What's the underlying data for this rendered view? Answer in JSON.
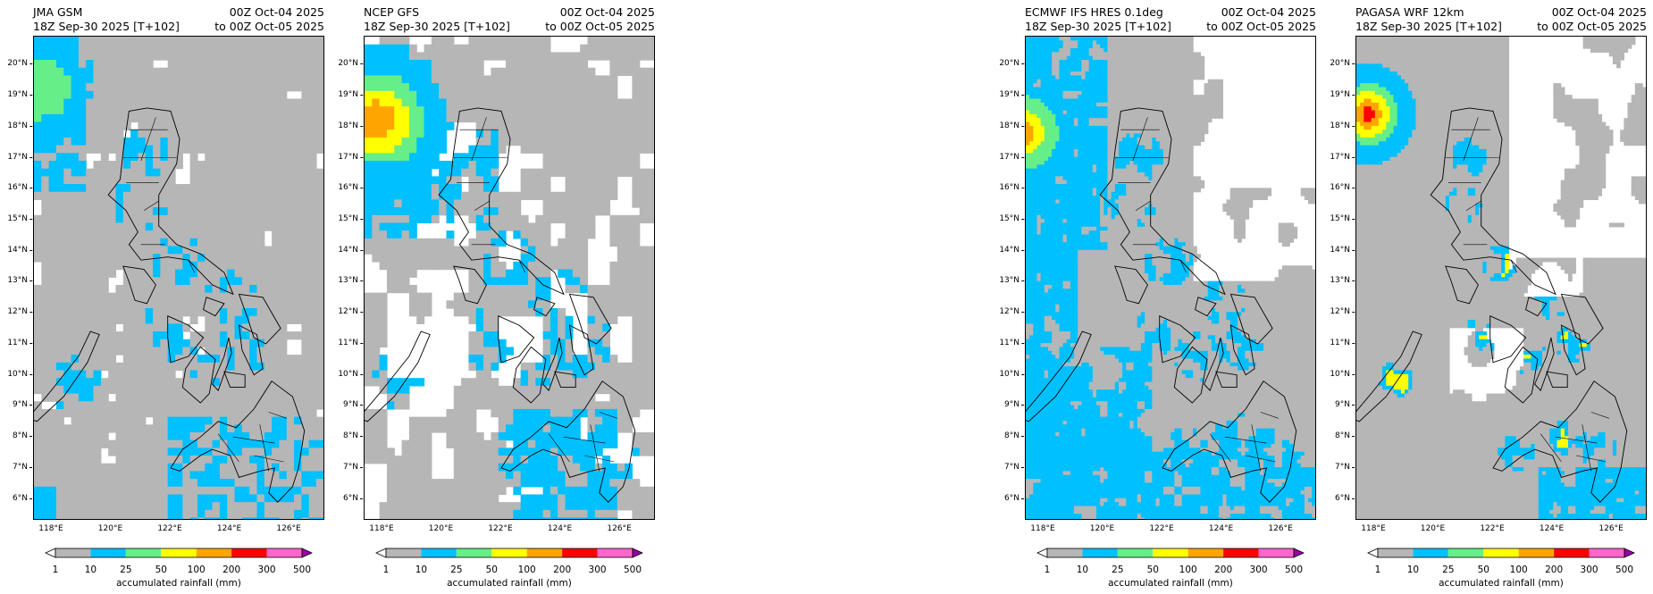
{
  "panels": [
    {
      "left": "JMA GSM",
      "init": "18Z Sep-30 2025 [T+102]",
      "valid_from": "00Z Oct-04 2025",
      "valid_to": "to 00Z Oct-05 2025",
      "pattern": "jma"
    },
    {
      "left": "NCEP GFS",
      "init": "18Z Sep-30 2025 [T+102]",
      "valid_from": "00Z Oct-04 2025",
      "valid_to": "to 00Z Oct-05 2025",
      "pattern": "gfs"
    },
    {
      "left": "ECMWF IFS HRES 0.1deg",
      "init": "18Z Sep-30 2025 [T+102]",
      "valid_from": "00Z Oct-04 2025",
      "valid_to": "to 00Z Oct-05 2025",
      "pattern": "ecmwf"
    },
    {
      "left": "PAGASA WRF 12km",
      "init": "18Z Sep-30 2025 [T+102]",
      "valid_from": "00Z Oct-04 2025",
      "valid_to": "to 00Z Oct-05 2025",
      "pattern": "wrf"
    }
  ],
  "lat_labels": [
    "20°N",
    "19°N",
    "18°N",
    "17°N",
    "16°N",
    "15°N",
    "14°N",
    "13°N",
    "12°N",
    "11°N",
    "10°N",
    "9°N",
    "8°N",
    "7°N",
    "6°N"
  ],
  "lon_labels": [
    "118°E",
    "120°E",
    "122°E",
    "124°E",
    "126°E"
  ],
  "colorbar": {
    "label": "accumulated rainfall (mm)",
    "ticks": [
      "1",
      "10",
      "25",
      "50",
      "100",
      "200",
      "300",
      "500"
    ],
    "colors": [
      "#b6b6b6",
      "#00c0ff",
      "#66ee88",
      "#ffff00",
      "#ffa500",
      "#ff0000",
      "#ff66cc"
    ],
    "under_color": "#ffffff",
    "over_color": "#9900aa"
  }
}
